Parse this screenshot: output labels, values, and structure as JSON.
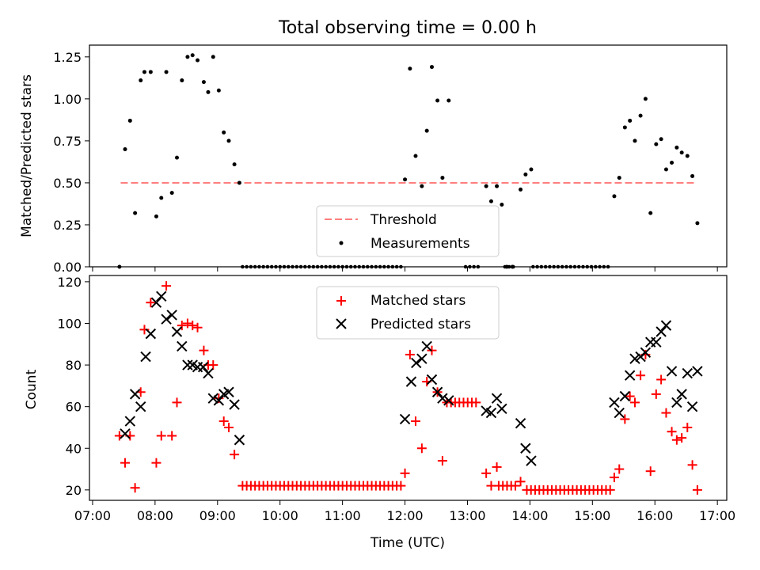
{
  "chart_data": [
    {
      "type": "scatter",
      "title": "Total observing time = 0.00 h",
      "xlabel": "",
      "ylabel": "Matched/Predicted stars",
      "xlim": [
        6.95,
        17.15
      ],
      "ylim": [
        0,
        1.32
      ],
      "yticks": [
        0,
        0.25,
        0.5,
        0.75,
        1.0,
        1.25
      ],
      "ytick_labels": [
        "0.00",
        "0.25",
        "0.50",
        "0.75",
        "1.00",
        "1.25"
      ],
      "legend_position": "bottom-center",
      "threshold": {
        "name": "Threshold",
        "y": 0.5,
        "x_range": [
          7.45,
          16.67
        ],
        "color": "#ff7f7f"
      },
      "series": [
        {
          "name": "Measurements",
          "color": "#000000",
          "x": [
            7.43,
            7.52,
            7.6,
            7.68,
            7.77,
            7.83,
            7.93,
            8.02,
            8.1,
            8.18,
            8.27,
            8.35,
            8.43,
            8.52,
            8.6,
            8.68,
            8.78,
            8.85,
            8.93,
            9.02,
            9.1,
            9.18,
            9.27,
            9.35,
            12.0,
            12.08,
            12.17,
            12.27,
            12.35,
            12.43,
            12.52,
            12.6,
            12.7,
            13.3,
            13.38,
            13.47,
            13.55,
            13.63,
            13.72,
            13.85,
            13.93,
            14.02,
            15.35,
            15.43,
            15.52,
            15.6,
            15.68,
            15.77,
            15.85,
            15.93,
            16.02,
            16.1,
            16.18,
            16.27,
            16.35,
            16.43,
            16.52,
            16.6,
            16.68
          ],
          "y": [
            0.0,
            0.7,
            0.87,
            0.32,
            1.11,
            1.16,
            1.16,
            0.3,
            0.41,
            1.16,
            0.44,
            0.65,
            1.11,
            1.25,
            1.26,
            1.23,
            1.1,
            1.04,
            1.25,
            1.05,
            0.8,
            0.75,
            0.61,
            0.5,
            0.52,
            1.18,
            0.66,
            0.48,
            0.81,
            1.19,
            0.99,
            0.53,
            0.99,
            0.48,
            0.39,
            0.48,
            0.37,
            0.0,
            0.0,
            0.46,
            0.55,
            0.58,
            0.42,
            0.53,
            0.83,
            0.87,
            0.75,
            0.9,
            1.0,
            0.32,
            0.73,
            0.76,
            0.58,
            0.62,
            0.71,
            0.68,
            0.66,
            0.54,
            0.26
          ]
        }
      ],
      "zero_runs": [
        [
          9.4,
          11.97
        ],
        [
          12.97,
          13.2
        ],
        [
          13.6,
          13.75
        ],
        [
          14.05,
          15.28
        ]
      ],
      "zero_run_step": 0.0667
    },
    {
      "type": "scatter",
      "title": "",
      "xlabel": "Time (UTC)",
      "ylabel": "Count",
      "xlim": [
        6.95,
        17.15
      ],
      "ylim": [
        15,
        123
      ],
      "xticks": [
        7,
        8,
        9,
        10,
        11,
        12,
        13,
        14,
        15,
        16,
        17
      ],
      "xtick_labels": [
        "07:00",
        "08:00",
        "09:00",
        "10:00",
        "11:00",
        "12:00",
        "13:00",
        "14:00",
        "15:00",
        "16:00",
        "17:00"
      ],
      "yticks": [
        20,
        40,
        60,
        80,
        100,
        120
      ],
      "ytick_labels": [
        "20",
        "40",
        "60",
        "80",
        "100",
        "120"
      ],
      "legend_position": "upper-center",
      "series": [
        {
          "name": "Matched stars",
          "marker": "plus",
          "color": "#ff0000",
          "x": [
            7.43,
            7.52,
            7.6,
            7.68,
            7.77,
            7.83,
            7.93,
            8.02,
            8.1,
            8.18,
            8.27,
            8.35,
            8.43,
            8.52,
            8.6,
            8.68,
            8.78,
            8.85,
            8.93,
            9.02,
            9.1,
            9.18,
            9.27,
            12.0,
            12.08,
            12.17,
            12.27,
            12.35,
            12.43,
            12.52,
            12.6,
            13.3,
            13.38,
            13.47,
            13.85,
            15.35,
            15.43,
            15.52,
            15.6,
            15.68,
            15.77,
            15.85,
            15.93,
            16.02,
            16.1,
            16.18,
            16.27,
            16.35,
            16.43,
            16.52,
            16.6,
            16.68
          ],
          "y": [
            46,
            33,
            46,
            21,
            67,
            97,
            110,
            33,
            46,
            118,
            46,
            62,
            99,
            100,
            99,
            98,
            87,
            80,
            80,
            64,
            53,
            50,
            37,
            28,
            85,
            53,
            40,
            72,
            87,
            67,
            34,
            28,
            22,
            31,
            24,
            26,
            30,
            54,
            65,
            62,
            75,
            85,
            29,
            66,
            73,
            57,
            48,
            44,
            45,
            50,
            32,
            20
          ]
        },
        {
          "name": "Predicted stars",
          "marker": "x",
          "color": "#000000",
          "x": [
            7.52,
            7.6,
            7.68,
            7.77,
            7.85,
            7.93,
            8.02,
            8.1,
            8.18,
            8.27,
            8.35,
            8.43,
            8.52,
            8.6,
            8.68,
            8.77,
            8.85,
            8.93,
            9.02,
            9.1,
            9.18,
            9.27,
            9.35,
            12.0,
            12.1,
            12.18,
            12.27,
            12.35,
            12.43,
            12.52,
            12.6,
            12.7,
            13.3,
            13.38,
            13.47,
            13.55,
            13.85,
            13.93,
            14.02,
            15.35,
            15.43,
            15.52,
            15.6,
            15.68,
            15.77,
            15.85,
            15.93,
            16.02,
            16.1,
            16.18,
            16.27,
            16.35,
            16.43,
            16.52,
            16.6,
            16.68
          ],
          "y": [
            47,
            53,
            66,
            60,
            84,
            95,
            110,
            113,
            102,
            104,
            96,
            89,
            80,
            80,
            79,
            79,
            76,
            64,
            63,
            66,
            67,
            61,
            44,
            54,
            72,
            81,
            83,
            89,
            73,
            67,
            64,
            63,
            58,
            57,
            64,
            59,
            52,
            40,
            34,
            62,
            57,
            65,
            75,
            83,
            84,
            86,
            91,
            91,
            96,
            99,
            77,
            62,
            66,
            76,
            60,
            77
          ]
        }
      ],
      "flat_runs": [
        [
          9.4,
          11.97,
          22
        ],
        [
          12.67,
          13.2,
          62
        ],
        [
          13.5,
          13.8,
          22
        ],
        [
          13.95,
          15.3,
          20
        ]
      ],
      "flat_run_step": 0.0667
    }
  ]
}
